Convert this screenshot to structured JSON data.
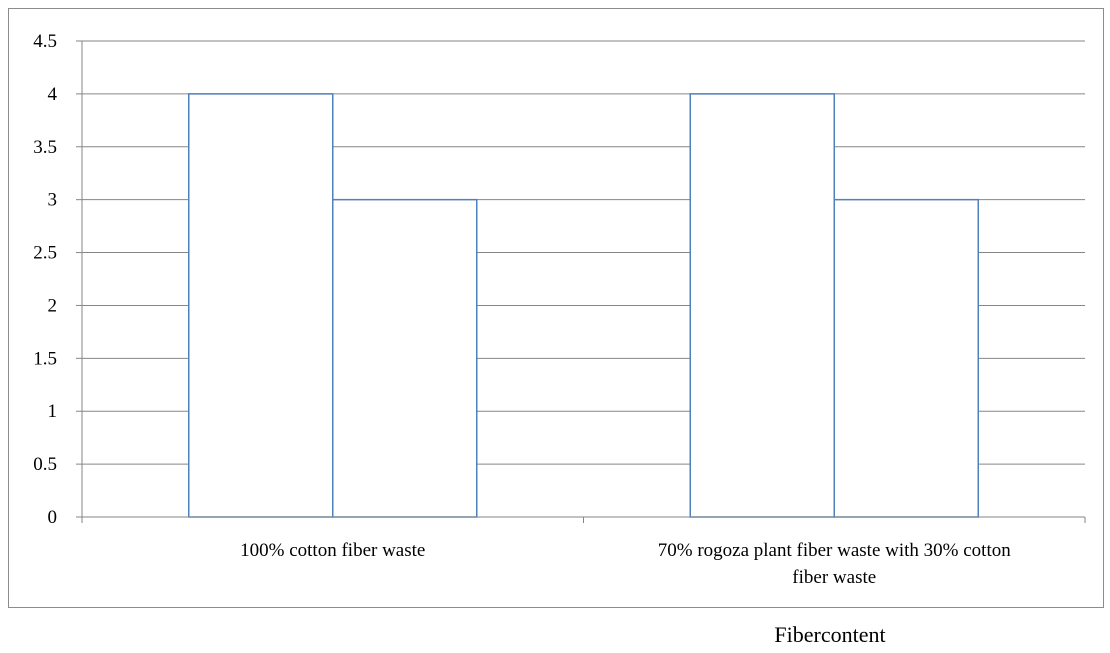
{
  "chart_data": {
    "type": "bar",
    "categories": [
      "100% cotton fiber waste",
      "70% rogoza plant fiber waste with 30% cotton fiber waste"
    ],
    "category_label_lines": [
      [
        "100% cotton fiber waste"
      ],
      [
        "70% rogoza plant fiber waste with 30% cotton",
        "fiber waste"
      ]
    ],
    "series": [
      {
        "values": [
          4,
          4
        ]
      },
      {
        "values": [
          3,
          3
        ]
      }
    ],
    "xlabel": "Fibercontent",
    "ylabel": "",
    "ylim": [
      0,
      4.5
    ],
    "yticks": [
      "0",
      "0.5",
      "1",
      "1.5",
      "2",
      "2.5",
      "3",
      "3.5",
      "4",
      "4.5"
    ],
    "grid": true,
    "legend": "none",
    "bar_fill": "#ffffff",
    "bar_stroke": "#4f81bd",
    "grid_color": "#868686"
  }
}
